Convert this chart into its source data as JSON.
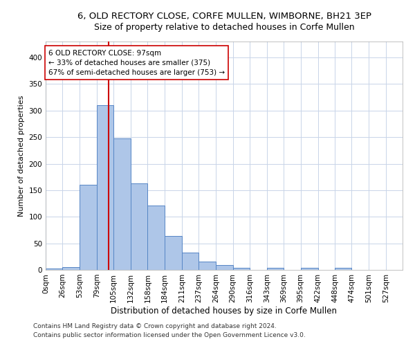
{
  "title1": "6, OLD RECTORY CLOSE, CORFE MULLEN, WIMBORNE, BH21 3EP",
  "title2": "Size of property relative to detached houses in Corfe Mullen",
  "xlabel": "Distribution of detached houses by size in Corfe Mullen",
  "ylabel": "Number of detached properties",
  "footnote1": "Contains HM Land Registry data © Crown copyright and database right 2024.",
  "footnote2": "Contains public sector information licensed under the Open Government Licence v3.0.",
  "annotation_line1": "6 OLD RECTORY CLOSE: 97sqm",
  "annotation_line2": "← 33% of detached houses are smaller (375)",
  "annotation_line3": "67% of semi-detached houses are larger (753) →",
  "property_size": 97,
  "bar_color": "#aec6e8",
  "bar_edge_color": "#5585c5",
  "vline_color": "#cc0000",
  "background_color": "#ffffff",
  "grid_color": "#c8d4e8",
  "categories": [
    "0sqm",
    "26sqm",
    "53sqm",
    "79sqm",
    "105sqm",
    "132sqm",
    "158sqm",
    "184sqm",
    "211sqm",
    "237sqm",
    "264sqm",
    "290sqm",
    "316sqm",
    "343sqm",
    "369sqm",
    "395sqm",
    "422sqm",
    "448sqm",
    "474sqm",
    "501sqm",
    "527sqm"
  ],
  "bin_edges": [
    0,
    26,
    53,
    79,
    105,
    132,
    158,
    184,
    211,
    237,
    264,
    290,
    316,
    343,
    369,
    395,
    422,
    448,
    474,
    501,
    527,
    553
  ],
  "bar_heights": [
    3,
    5,
    160,
    310,
    247,
    163,
    121,
    64,
    32,
    15,
    9,
    4,
    0,
    4,
    0,
    4,
    0,
    4,
    0,
    0,
    0
  ],
  "ylim": [
    0,
    430
  ],
  "yticks": [
    0,
    50,
    100,
    150,
    200,
    250,
    300,
    350,
    400
  ],
  "title1_fontsize": 9.5,
  "title2_fontsize": 9,
  "xlabel_fontsize": 8.5,
  "ylabel_fontsize": 8,
  "tick_fontsize": 7.5,
  "footnote_fontsize": 6.5,
  "annotation_fontsize": 7.5
}
